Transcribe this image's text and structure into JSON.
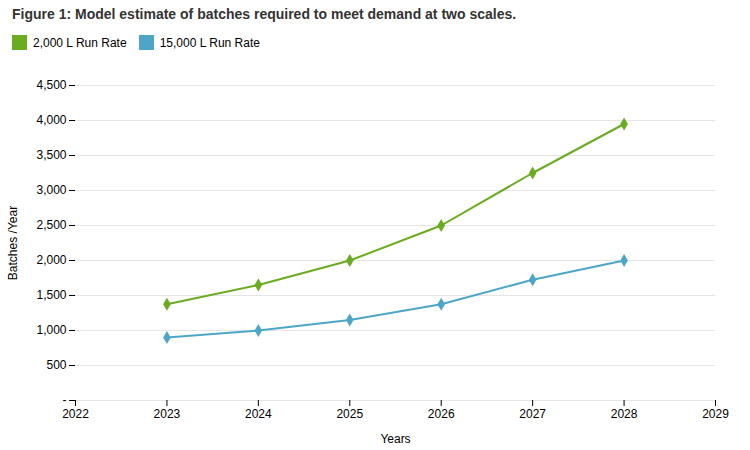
{
  "chart_data": {
    "type": "line",
    "title": "Figure 1: Model estimate of batches required to meet demand at two scales.",
    "x_label": "Years",
    "y_label": "Batches /Year",
    "xlim": [
      2022,
      2029
    ],
    "xticks": [
      2022,
      2023,
      2024,
      2025,
      2026,
      2027,
      2028,
      2029
    ],
    "ylim": [
      0,
      4500
    ],
    "yticks": [
      {
        "value": 0,
        "label": "-"
      },
      500,
      {
        "value": 1000,
        "label": "1,000"
      },
      {
        "value": 1500,
        "label": "1,500"
      },
      {
        "value": 2000,
        "label": "2,000"
      },
      {
        "value": 2500,
        "label": "2,500"
      },
      {
        "value": 3000,
        "label": "3,000"
      },
      {
        "value": 3500,
        "label": "3,500"
      },
      {
        "value": 4000,
        "label": "4,000"
      },
      {
        "value": 4500,
        "label": "4,500"
      }
    ],
    "grid": true,
    "legend": "top",
    "x": [
      2023,
      2024,
      2025,
      2026,
      2027,
      2028
    ],
    "series": [
      {
        "name": "2,000 L Run Rate",
        "color": "#6AAB20",
        "marker": "diamond",
        "values": [
          1375,
          1650,
          2000,
          2500,
          3250,
          3950
        ]
      },
      {
        "name": "15,000 L Run Rate",
        "color": "#4DA6C8",
        "marker": "diamond",
        "values": [
          900,
          1000,
          1150,
          1375,
          1725,
          2000
        ]
      }
    ]
  }
}
